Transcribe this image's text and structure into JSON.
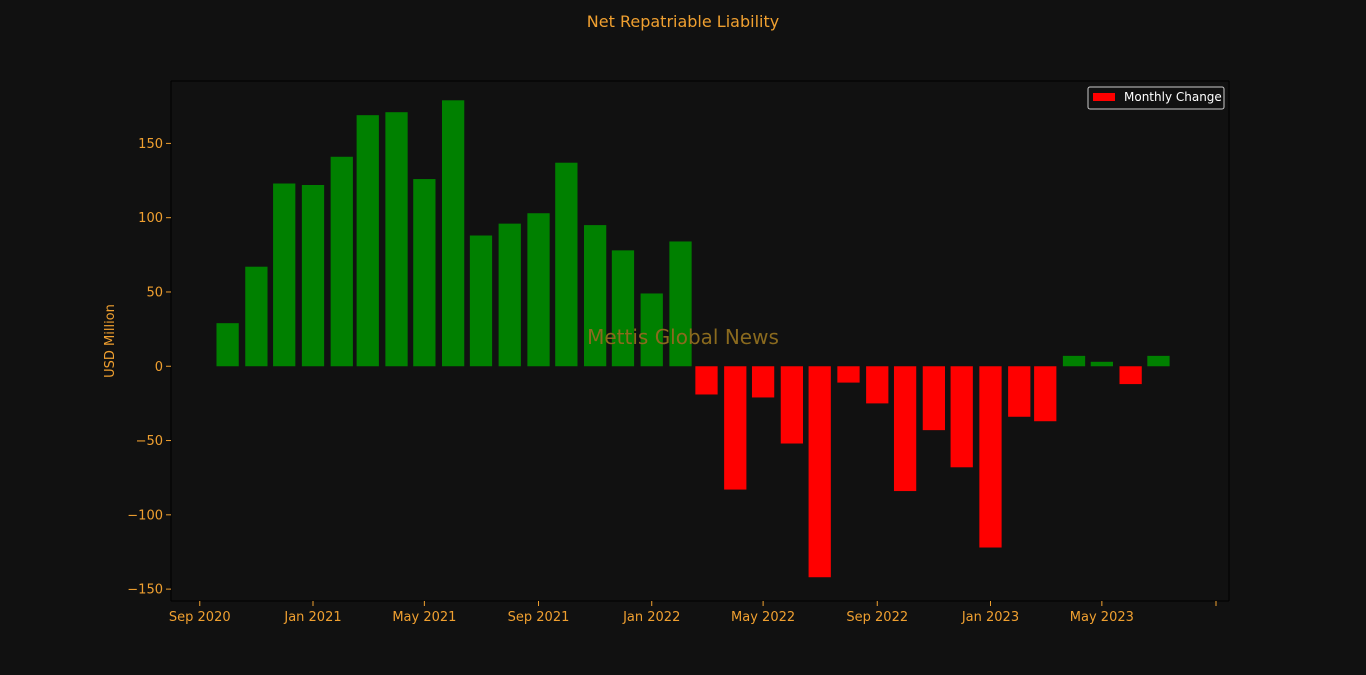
{
  "chart_data": {
    "type": "bar",
    "title": "Net Repatriable Liability",
    "ylabel": "USD Million",
    "xlabel": "",
    "watermark": "Mettis Global News",
    "legend": {
      "label": "Monthly Change",
      "placement": "top-right"
    },
    "ylim": [
      -158,
      192
    ],
    "yticks": [
      -150,
      -100,
      -50,
      0,
      50,
      100,
      150
    ],
    "xlim": [
      "2020-08-01",
      "2023-09-15"
    ],
    "xticks": [
      {
        "date": "2020-09-01",
        "label": "Sep 2020"
      },
      {
        "date": "2021-01-01",
        "label": "Jan 2021"
      },
      {
        "date": "2021-05-01",
        "label": "May 2021"
      },
      {
        "date": "2021-09-01",
        "label": "Sep 2021"
      },
      {
        "date": "2022-01-01",
        "label": "Jan 2022"
      },
      {
        "date": "2022-05-01",
        "label": "May 2022"
      },
      {
        "date": "2022-09-01",
        "label": "Sep 2022"
      },
      {
        "date": "2023-01-01",
        "label": "Jan 2023"
      },
      {
        "date": "2023-05-01",
        "label": "May 2023"
      },
      {
        "date": "2023-09-01",
        "label": ""
      }
    ],
    "colors": {
      "positive": "#008000",
      "negative": "#ff0000",
      "background": "#111111",
      "text": "#f0a030"
    },
    "x": [
      "2020-10",
      "2020-11",
      "2020-12",
      "2021-01",
      "2021-02",
      "2021-03",
      "2021-04",
      "2021-05",
      "2021-06",
      "2021-07",
      "2021-08",
      "2021-09",
      "2021-10",
      "2021-11",
      "2021-12",
      "2022-01",
      "2022-02",
      "2022-03",
      "2022-04",
      "2022-05",
      "2022-06",
      "2022-07",
      "2022-08",
      "2022-09",
      "2022-10",
      "2022-11",
      "2022-12",
      "2023-01",
      "2023-02",
      "2023-03",
      "2023-04",
      "2023-05",
      "2023-06",
      "2023-07"
    ],
    "values": [
      29,
      67,
      123,
      122,
      141,
      169,
      171,
      126,
      179,
      88,
      96,
      103,
      137,
      95,
      78,
      49,
      84,
      -19,
      -83,
      -21,
      -52,
      -142,
      -11,
      -25,
      -84,
      -43,
      -68,
      -122,
      -34,
      -37,
      7,
      3,
      -12,
      7
    ]
  }
}
